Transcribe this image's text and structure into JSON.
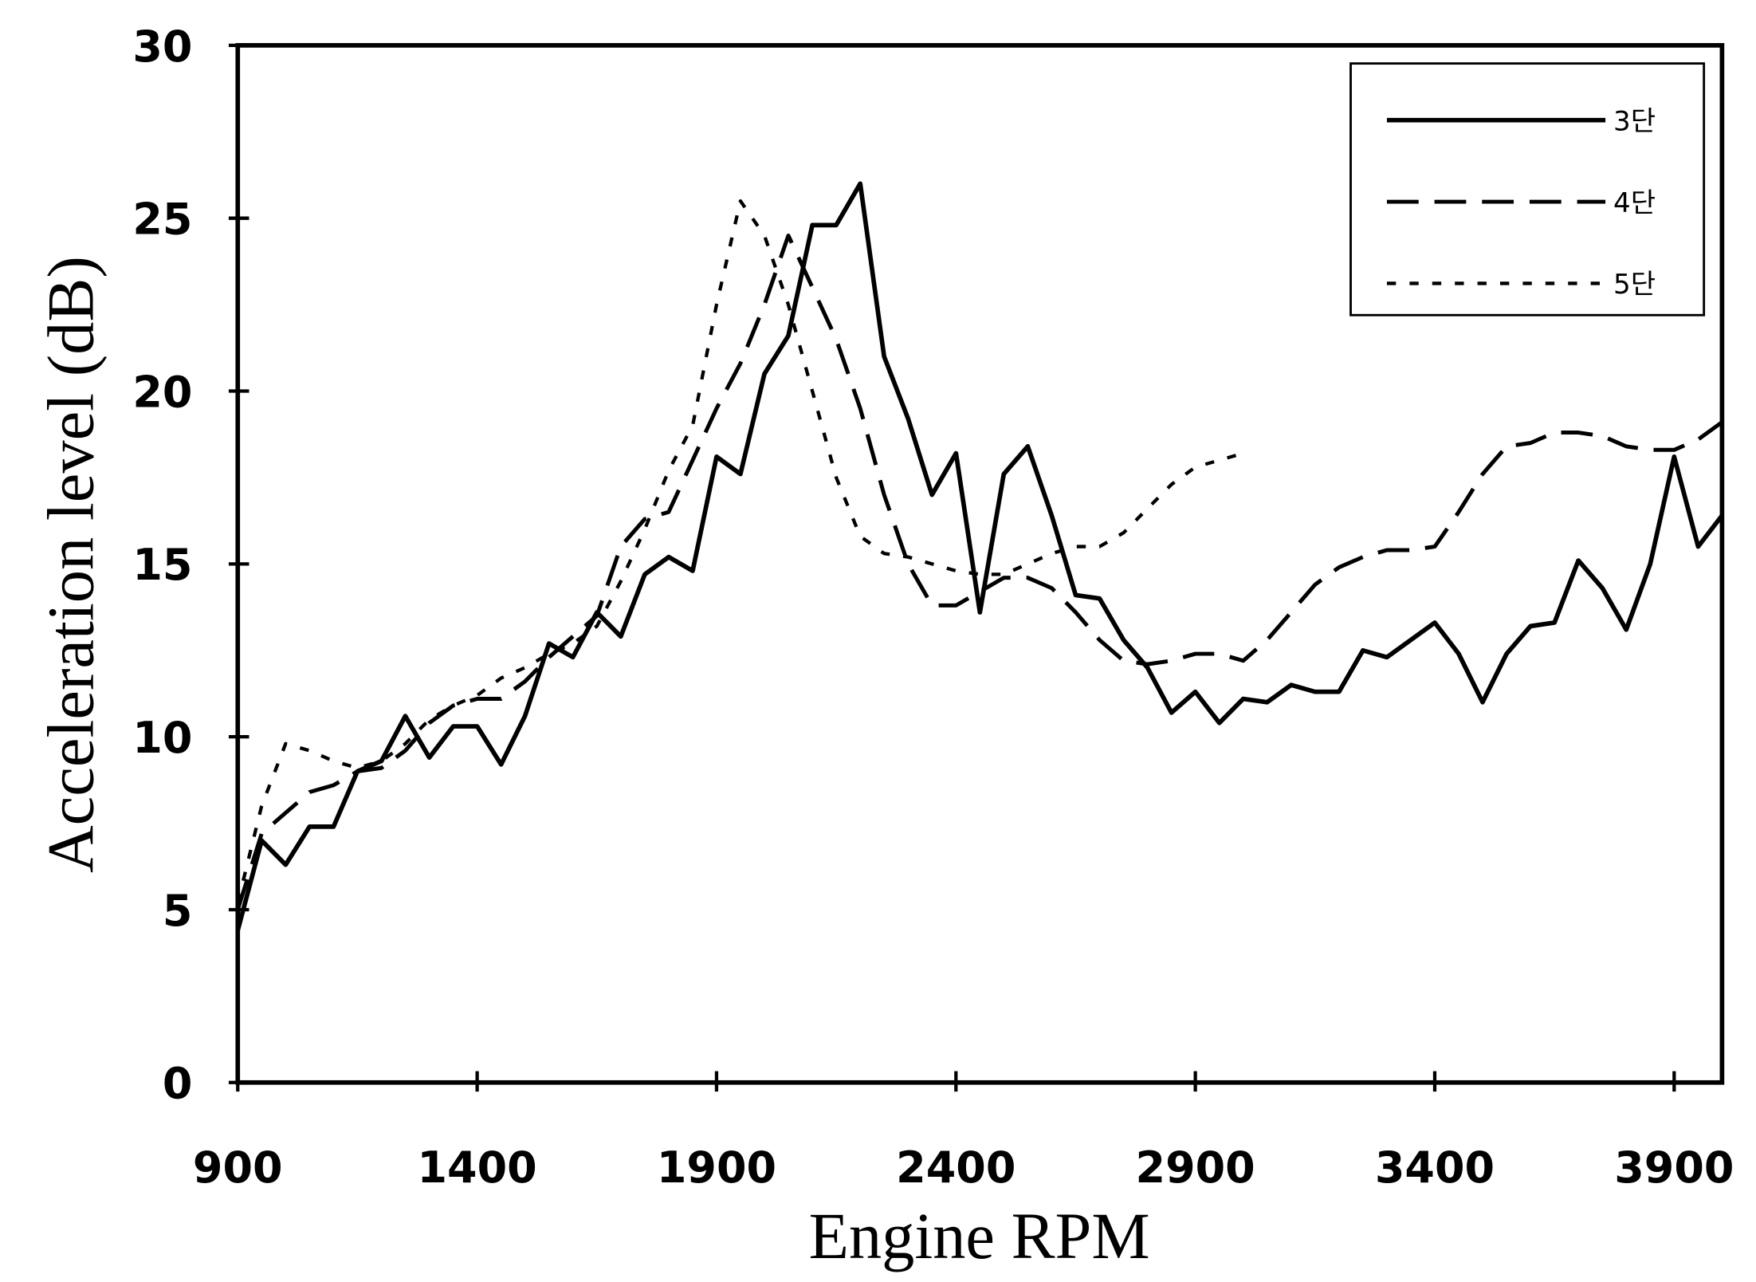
{
  "chart_data": {
    "type": "line",
    "xlabel": "Engine RPM",
    "ylabel": "Acceleration level (dB)",
    "x": [
      900,
      950,
      1000,
      1050,
      1100,
      1150,
      1200,
      1250,
      1300,
      1350,
      1400,
      1450,
      1500,
      1550,
      1600,
      1650,
      1700,
      1750,
      1800,
      1850,
      1900,
      1950,
      2000,
      2050,
      2100,
      2150,
      2200,
      2250,
      2300,
      2350,
      2400,
      2450,
      2500,
      2550,
      2600,
      2650,
      2700,
      2750,
      2800,
      2850,
      2900,
      2950,
      3000,
      3050,
      3100,
      3150,
      3200,
      3250,
      3300,
      3350,
      3400,
      3450,
      3500,
      3550,
      3600,
      3650,
      3700,
      3750,
      3800,
      3850,
      3900,
      3950,
      4000
    ],
    "series": [
      {
        "name": "3단",
        "color": "#000000",
        "dash": "solid",
        "values": [
          4.4,
          7,
          6.3,
          7.4,
          7.4,
          9,
          9.3,
          10.6,
          9.4,
          10.3,
          10.3,
          9.2,
          10.6,
          12.7,
          12.3,
          13.6,
          12.9,
          14.7,
          15.2,
          14.8,
          18.1,
          17.6,
          20.5,
          21.6,
          24.8,
          24.8,
          26,
          21,
          19.2,
          17,
          18.2,
          13.6,
          17.6,
          18.4,
          16.4,
          14.1,
          14,
          12.8,
          12,
          10.7,
          11.3,
          10.4,
          11.1,
          11,
          11.5,
          11.3,
          11.3,
          12.5,
          12.3,
          12.8,
          13.3,
          12.4,
          11,
          12.4,
          13.2,
          13.3,
          15.1,
          14.3,
          13.1,
          15,
          18.1,
          15.5,
          16.4
        ]
      },
      {
        "name": "4단",
        "color": "#000000",
        "dash": "dashed",
        "values": [
          5,
          7.2,
          7.8,
          8.4,
          8.6,
          9,
          9.1,
          9.6,
          10.4,
          10.9,
          11.1,
          11.1,
          11.6,
          12.3,
          12.9,
          13.5,
          15.5,
          16.3,
          16.5,
          18,
          19.5,
          20.8,
          22.5,
          24.5,
          23,
          21.5,
          19.5,
          17,
          15,
          13.8,
          13.8,
          14.2,
          14.6,
          14.6,
          14.3,
          13.6,
          12.8,
          12.2,
          12.1,
          12.2,
          12.4,
          12.4,
          12.2,
          12.8,
          13.6,
          14.4,
          14.9,
          15.2,
          15.4,
          15.4,
          15.5,
          16.5,
          17.6,
          18.4,
          18.5,
          18.8,
          18.8,
          18.7,
          18.4,
          18.3,
          18.3,
          18.6,
          19.1
        ]
      },
      {
        "name": "5단",
        "color": "#000000",
        "dash": "dotted",
        "values": [
          5.2,
          8,
          9.8,
          9.6,
          9.3,
          9.1,
          9.3,
          9.8,
          10.5,
          10.9,
          11.2,
          11.7,
          12,
          12.4,
          12.7,
          13.2,
          14.5,
          16,
          17.7,
          19,
          22.5,
          25.5,
          24.5,
          22.5,
          20,
          17.5,
          15.8,
          15.3,
          15.2,
          15,
          14.8,
          14.7,
          14.7,
          15,
          15.3,
          15.5,
          15.5,
          15.9,
          16.6,
          17.3,
          17.8,
          18,
          18.2,
          null,
          null,
          null,
          null,
          null,
          null,
          null,
          null,
          null,
          null,
          null,
          null,
          null,
          null,
          null,
          null,
          null,
          null,
          null,
          null
        ]
      }
    ],
    "xlim": [
      900,
      4000
    ],
    "xticks": [
      900,
      1400,
      1900,
      2400,
      2900,
      3400,
      3900
    ],
    "ylim": [
      0,
      30
    ],
    "yticks": [
      0,
      5,
      10,
      15,
      20,
      25,
      30
    ],
    "grid": false,
    "legend": "upper right"
  }
}
